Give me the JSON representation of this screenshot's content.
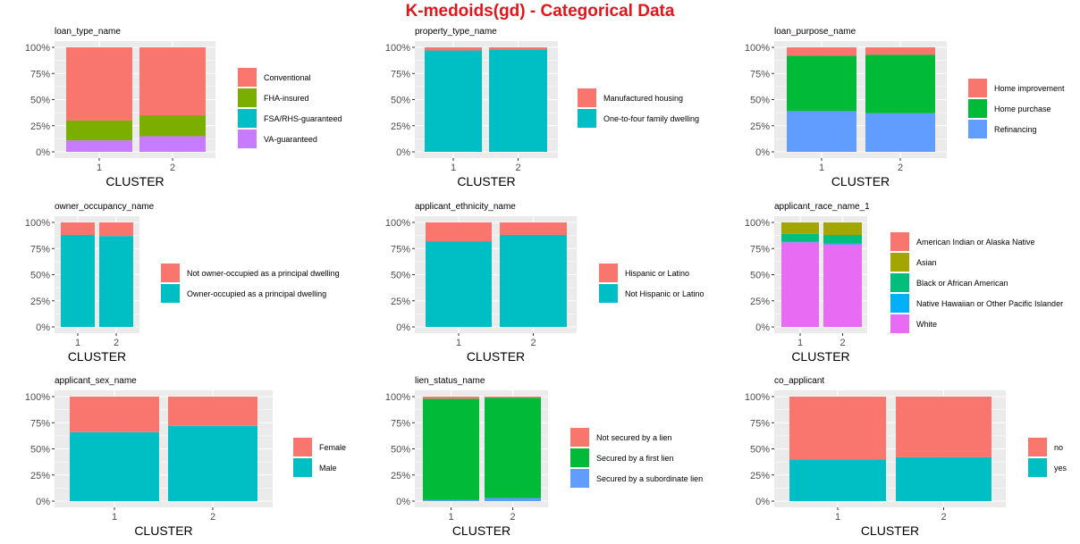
{
  "title": "K-medoids(gd) - Categorical Data",
  "colors": {
    "title": "#e3151a",
    "panel_bg": "#ebebeb",
    "grid": "#ffffff"
  },
  "chart_data": [
    {
      "type": "bar",
      "stacked": "percent",
      "title": "loan_type_name",
      "xlabel": "CLUSTER",
      "ylabel": "",
      "categories": [
        "1",
        "2"
      ],
      "yticks": [
        "0%",
        "25%",
        "50%",
        "75%",
        "100%"
      ],
      "ylim": [
        0,
        1
      ],
      "legend": "right",
      "series": [
        {
          "name": "Conventional",
          "color": "#f8766d",
          "values": [
            0.7,
            0.65
          ]
        },
        {
          "name": "FHA-insured",
          "color": "#7cae00",
          "values": [
            0.19,
            0.2
          ]
        },
        {
          "name": "FSA/RHS-guaranteed",
          "color": "#00bfc4",
          "values": [
            0.0,
            0.0
          ]
        },
        {
          "name": "VA-guaranteed",
          "color": "#c77cff",
          "values": [
            0.11,
            0.15
          ]
        }
      ]
    },
    {
      "type": "bar",
      "stacked": "percent",
      "title": "property_type_name",
      "xlabel": "CLUSTER",
      "ylabel": "",
      "categories": [
        "1",
        "2"
      ],
      "yticks": [
        "0%",
        "25%",
        "50%",
        "75%",
        "100%"
      ],
      "ylim": [
        0,
        1
      ],
      "legend": "right",
      "series": [
        {
          "name": "Manufactured housing",
          "color": "#f8766d",
          "values": [
            0.03,
            0.02
          ]
        },
        {
          "name": "One-to-four family dwelling",
          "color": "#00bfc4",
          "values": [
            0.97,
            0.98
          ]
        }
      ]
    },
    {
      "type": "bar",
      "stacked": "percent",
      "title": "loan_purpose_name",
      "xlabel": "CLUSTER",
      "ylabel": "",
      "categories": [
        "1",
        "2"
      ],
      "yticks": [
        "0%",
        "25%",
        "50%",
        "75%",
        "100%"
      ],
      "ylim": [
        0,
        1
      ],
      "legend": "right",
      "series": [
        {
          "name": "Home improvement",
          "color": "#f8766d",
          "values": [
            0.08,
            0.07
          ]
        },
        {
          "name": "Home purchase",
          "color": "#00ba38",
          "values": [
            0.53,
            0.56
          ]
        },
        {
          "name": "Refinancing",
          "color": "#619cff",
          "values": [
            0.39,
            0.37
          ]
        }
      ]
    },
    {
      "type": "bar",
      "stacked": "percent",
      "title": "owner_occupancy_name",
      "xlabel": "CLUSTER",
      "ylabel": "",
      "categories": [
        "1",
        "2"
      ],
      "yticks": [
        "0%",
        "25%",
        "50%",
        "75%",
        "100%"
      ],
      "ylim": [
        0,
        1
      ],
      "legend": "right",
      "series": [
        {
          "name": "Not owner-occupied as a principal dwelling",
          "color": "#f8766d",
          "values": [
            0.12,
            0.13
          ]
        },
        {
          "name": "Owner-occupied as a principal dwelling",
          "color": "#00bfc4",
          "values": [
            0.88,
            0.87
          ]
        }
      ]
    },
    {
      "type": "bar",
      "stacked": "percent",
      "title": "applicant_ethnicity_name",
      "xlabel": "CLUSTER",
      "ylabel": "",
      "categories": [
        "1",
        "2"
      ],
      "yticks": [
        "0%",
        "25%",
        "50%",
        "75%",
        "100%"
      ],
      "ylim": [
        0,
        1
      ],
      "legend": "right",
      "series": [
        {
          "name": "Hispanic or Latino",
          "color": "#f8766d",
          "values": [
            0.18,
            0.12
          ]
        },
        {
          "name": "Not Hispanic or Latino",
          "color": "#00bfc4",
          "values": [
            0.82,
            0.88
          ]
        }
      ]
    },
    {
      "type": "bar",
      "stacked": "percent",
      "title": "applicant_race_name_1",
      "xlabel": "CLUSTER",
      "ylabel": "",
      "categories": [
        "1",
        "2"
      ],
      "yticks": [
        "0%",
        "25%",
        "50%",
        "75%",
        "100%"
      ],
      "ylim": [
        0,
        1
      ],
      "legend": "right",
      "series": [
        {
          "name": "American Indian or Alaska Native",
          "color": "#f8766d",
          "values": [
            0.0,
            0.0
          ]
        },
        {
          "name": "Asian",
          "color": "#a3a500",
          "values": [
            0.11,
            0.12
          ]
        },
        {
          "name": "Black or African American",
          "color": "#00bf7d",
          "values": [
            0.07,
            0.08
          ]
        },
        {
          "name": "Native Hawaiian or Other Pacific Islander",
          "color": "#00b0f6",
          "values": [
            0.01,
            0.01
          ]
        },
        {
          "name": "White",
          "color": "#e76bf3",
          "values": [
            0.81,
            0.79
          ]
        }
      ]
    },
    {
      "type": "bar",
      "stacked": "percent",
      "title": "applicant_sex_name",
      "xlabel": "CLUSTER",
      "ylabel": "",
      "categories": [
        "1",
        "2"
      ],
      "yticks": [
        "0%",
        "25%",
        "50%",
        "75%",
        "100%"
      ],
      "ylim": [
        0,
        1
      ],
      "legend": "right",
      "series": [
        {
          "name": "Female",
          "color": "#f8766d",
          "values": [
            0.34,
            0.28
          ]
        },
        {
          "name": "Male",
          "color": "#00bfc4",
          "values": [
            0.66,
            0.72
          ]
        }
      ]
    },
    {
      "type": "bar",
      "stacked": "percent",
      "title": "lien_status_name",
      "xlabel": "CLUSTER",
      "ylabel": "",
      "categories": [
        "1",
        "2"
      ],
      "yticks": [
        "0%",
        "25%",
        "50%",
        "75%",
        "100%"
      ],
      "ylim": [
        0,
        1
      ],
      "legend": "right",
      "series": [
        {
          "name": "Not secured by a lien",
          "color": "#f8766d",
          "values": [
            0.02,
            0.01
          ]
        },
        {
          "name": "Secured by a first lien",
          "color": "#00ba38",
          "values": [
            0.97,
            0.96
          ]
        },
        {
          "name": "Secured by a subordinate lien",
          "color": "#619cff",
          "values": [
            0.01,
            0.03
          ]
        }
      ]
    },
    {
      "type": "bar",
      "stacked": "percent",
      "title": "co_applicant",
      "xlabel": "CLUSTER",
      "ylabel": "",
      "categories": [
        "1",
        "2"
      ],
      "yticks": [
        "0%",
        "25%",
        "50%",
        "75%",
        "100%"
      ],
      "ylim": [
        0,
        1
      ],
      "legend": "right",
      "series": [
        {
          "name": "no",
          "color": "#f8766d",
          "values": [
            0.6,
            0.58
          ]
        },
        {
          "name": "yes",
          "color": "#00bfc4",
          "values": [
            0.4,
            0.42
          ]
        }
      ]
    }
  ]
}
